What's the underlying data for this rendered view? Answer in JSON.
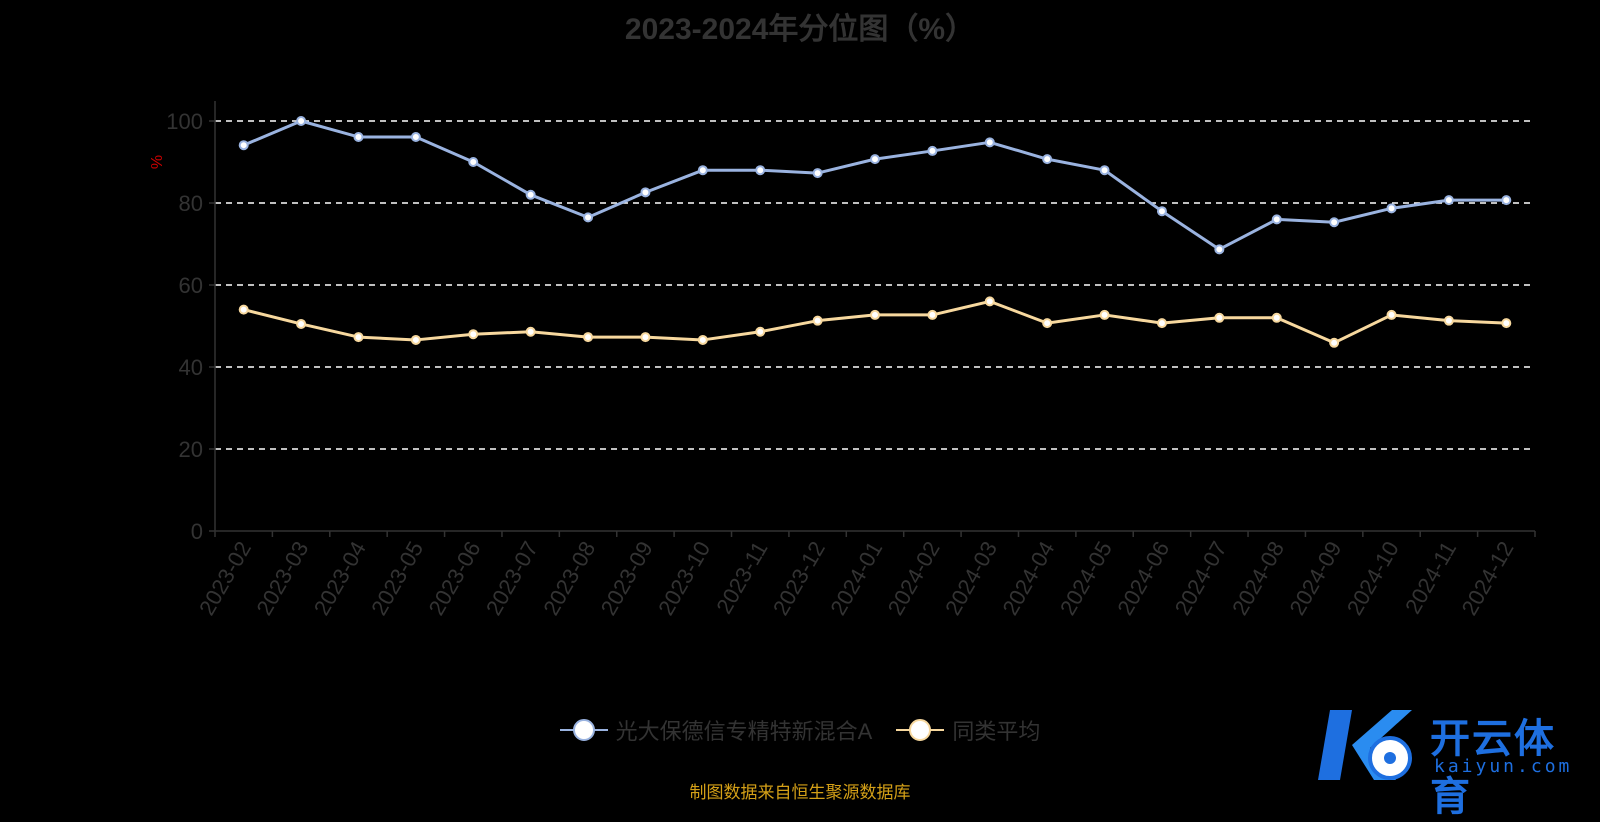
{
  "chart_data": {
    "type": "line",
    "title": "2023-2024年分位图（%）",
    "ylabel": "%",
    "xlabel": "",
    "ylim": [
      0,
      100
    ],
    "y_ticks": [
      0,
      20,
      40,
      60,
      80,
      100
    ],
    "grid": true,
    "legend_position": "bottom-center",
    "categories": [
      "2023-02",
      "2023-03",
      "2023-04",
      "2023-05",
      "2023-06",
      "2023-07",
      "2023-08",
      "2023-09",
      "2023-10",
      "2023-11",
      "2023-12",
      "2024-01",
      "2024-02",
      "2024-03",
      "2024-04",
      "2024-05",
      "2024-06",
      "2024-07",
      "2024-08",
      "2024-09",
      "2024-10",
      "2024-11",
      "2024-12"
    ],
    "series": [
      {
        "name": "光大保德信专精特新混合A",
        "color": "#9ab3e0",
        "values": [
          94.1,
          100,
          96.1,
          96.1,
          90.0,
          82.0,
          76.5,
          82.6,
          88.0,
          88.0,
          87.3,
          90.7,
          92.7,
          94.8,
          90.7,
          88.0,
          78.0,
          68.7,
          76.0,
          75.3,
          78.7,
          80.7,
          80.7
        ]
      },
      {
        "name": "同类平均",
        "color": "#f7d89e",
        "values": [
          54.0,
          50.5,
          47.3,
          46.6,
          48.0,
          48.6,
          47.3,
          47.3,
          46.6,
          48.6,
          51.3,
          52.7,
          52.7,
          56.0,
          50.7,
          52.7,
          50.7,
          52.0,
          52.0,
          45.9,
          52.7,
          51.3,
          50.7
        ]
      }
    ]
  },
  "source_note": "制图数据来自恒生聚源数据库",
  "watermark": {
    "brand": "开云体育",
    "domain": "kaiyun.com"
  }
}
